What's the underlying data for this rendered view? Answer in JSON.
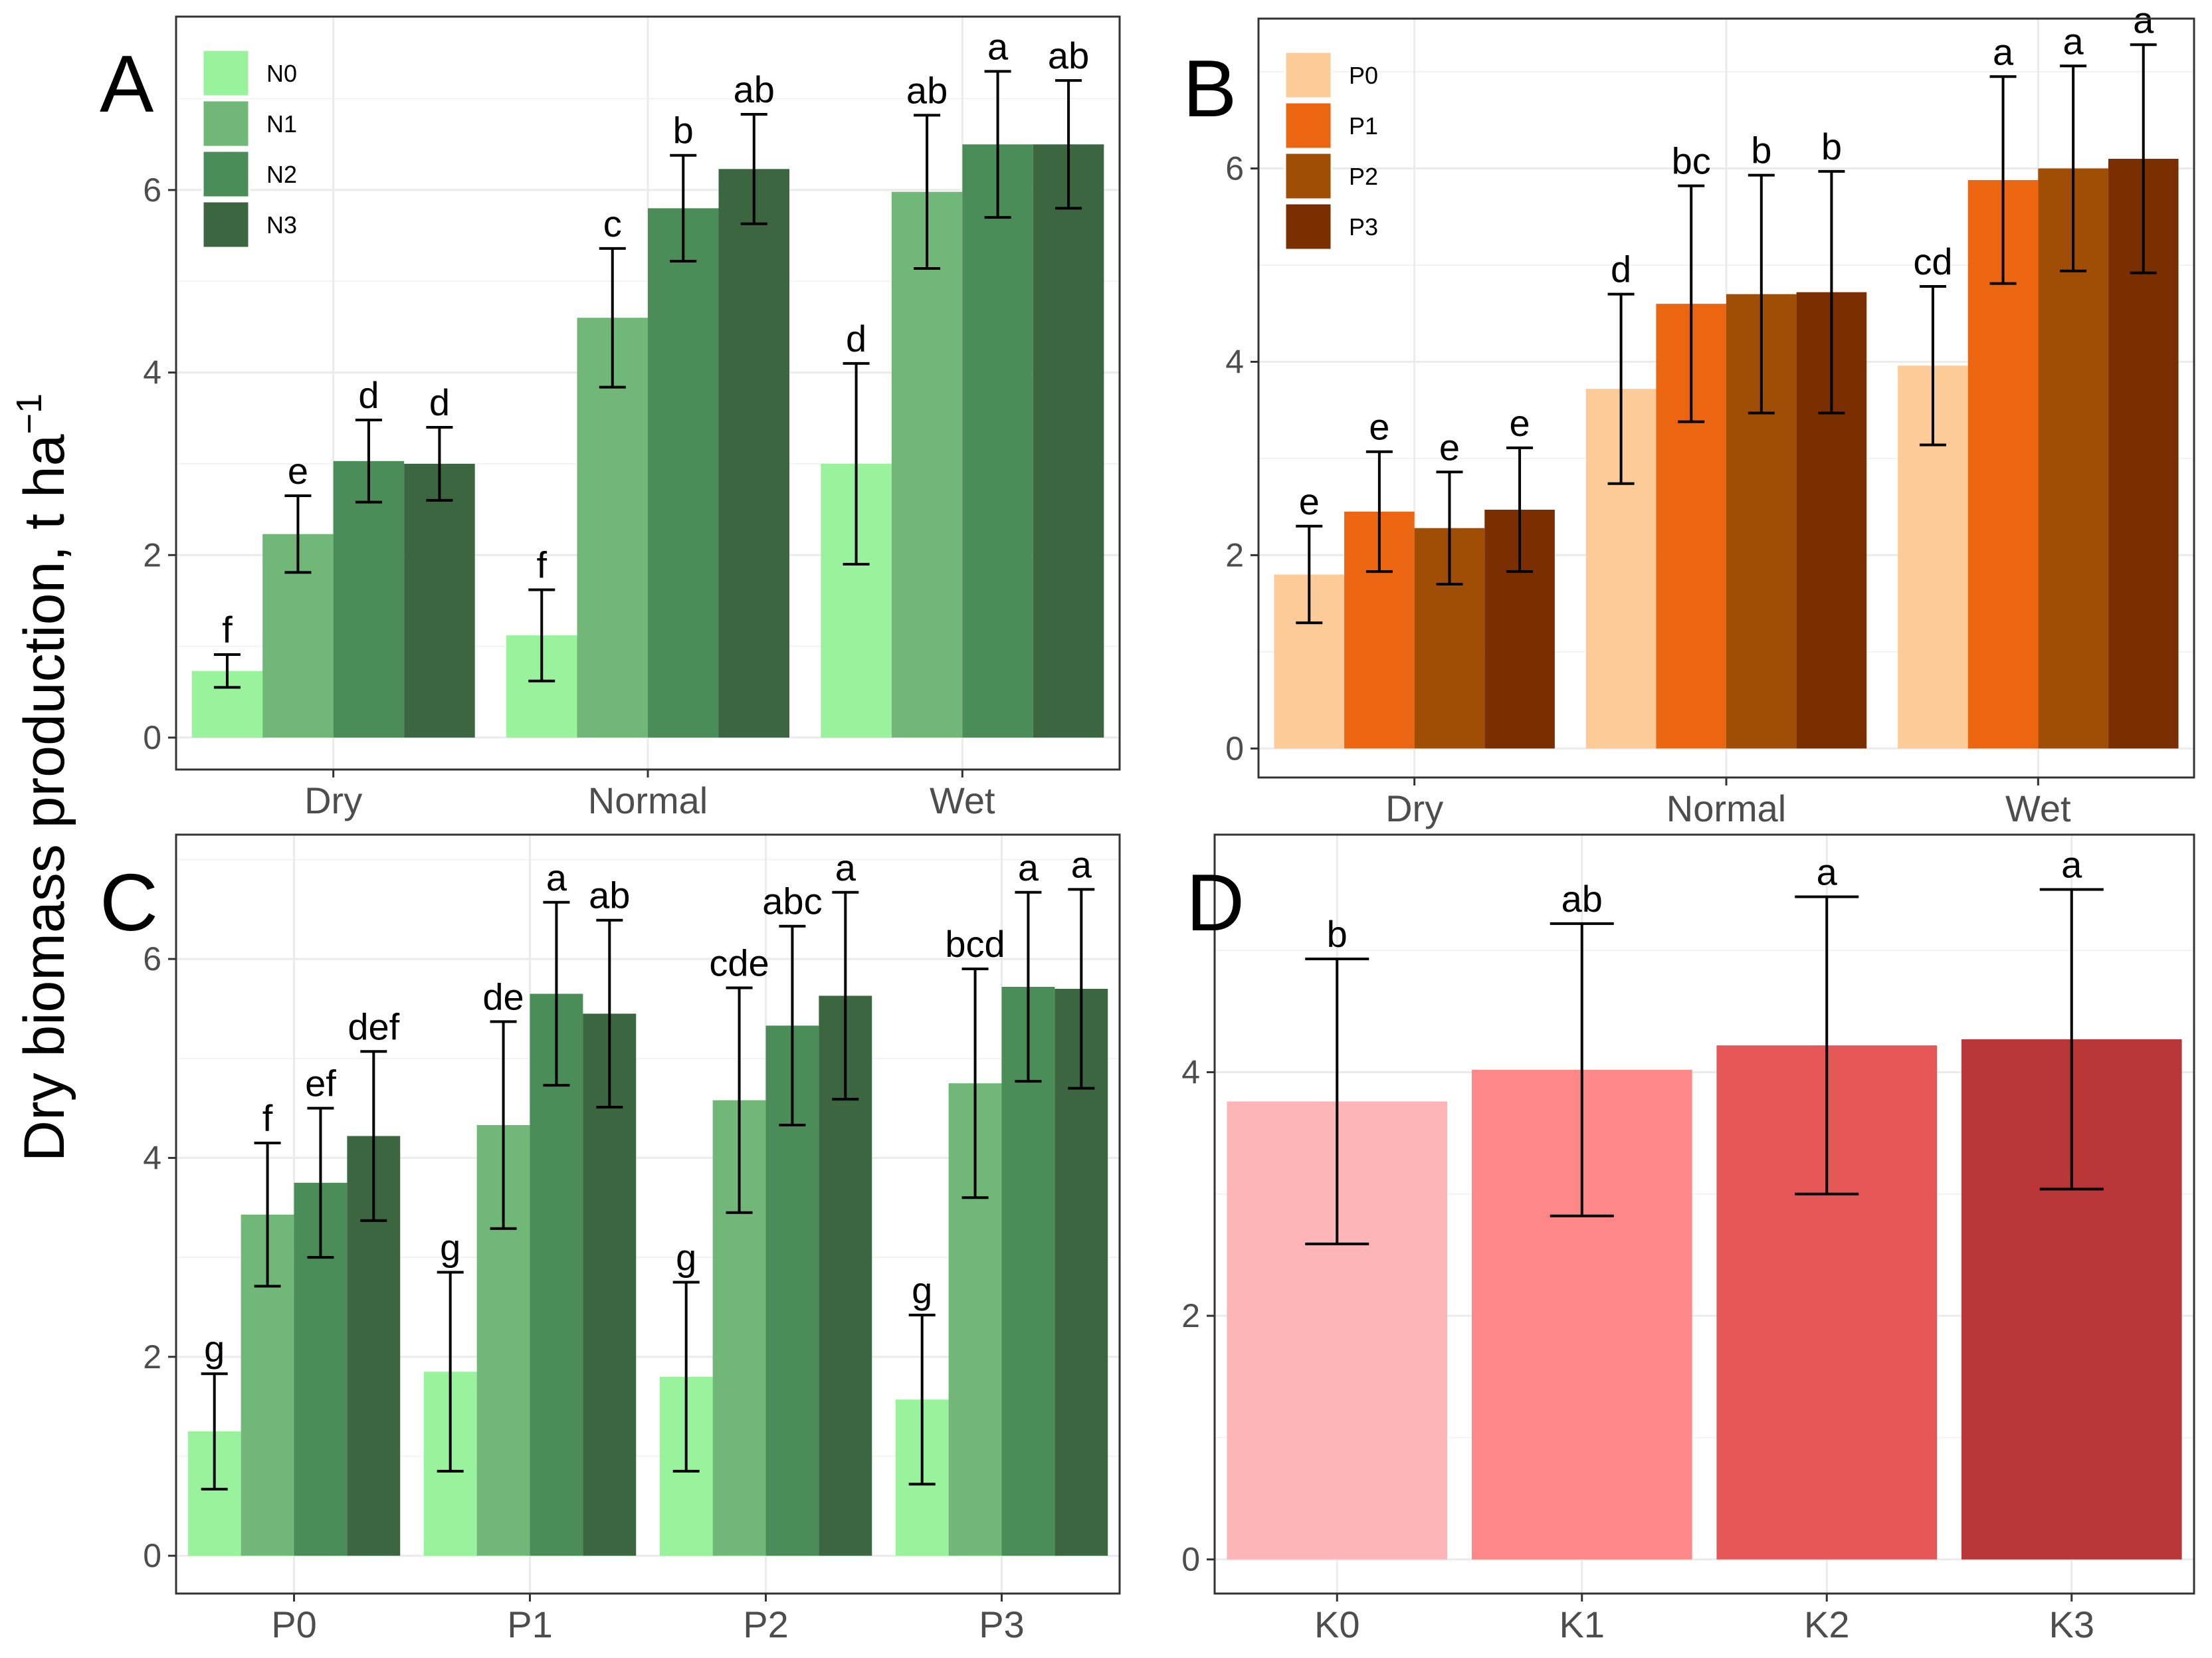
{
  "figure": {
    "y_axis_title": "Dry biomass production, t ha",
    "y_axis_title_superscript": "−1"
  },
  "chart_data": [
    {
      "panel": "A",
      "type": "bar",
      "categories": [
        "Dry",
        "Normal",
        "Wet"
      ],
      "ylim": [
        -0.35,
        7.9
      ],
      "yticks": [
        0,
        2,
        4,
        6
      ],
      "legend": true,
      "legend_position": "top-left",
      "series": [
        {
          "name": "N0",
          "color": "#98f39c",
          "values": [
            0.73,
            1.12,
            3.0
          ],
          "errors": [
            0.18,
            0.5,
            1.1
          ],
          "labels": [
            "f",
            "f",
            "d"
          ]
        },
        {
          "name": "N1",
          "color": "#70b778",
          "values": [
            2.23,
            4.6,
            5.98
          ],
          "errors": [
            0.42,
            0.76,
            0.84
          ],
          "labels": [
            "e",
            "c",
            "ab"
          ]
        },
        {
          "name": "N2",
          "color": "#4a8d58",
          "values": [
            3.03,
            5.8,
            6.5
          ],
          "errors": [
            0.45,
            0.58,
            0.8
          ],
          "labels": [
            "d",
            "b",
            "a"
          ]
        },
        {
          "name": "N3",
          "color": "#3b6640",
          "values": [
            3.0,
            6.23,
            6.5
          ],
          "errors": [
            0.4,
            0.6,
            0.7
          ],
          "labels": [
            "d",
            "ab",
            "ab"
          ]
        }
      ]
    },
    {
      "panel": "B",
      "type": "bar",
      "categories": [
        "Dry",
        "Normal",
        "Wet"
      ],
      "ylim": [
        -0.3,
        7.55
      ],
      "yticks": [
        0,
        2,
        4,
        6
      ],
      "legend": true,
      "legend_position": "top-left",
      "series": [
        {
          "name": "P0",
          "color": "#fdcb97",
          "values": [
            1.8,
            3.72,
            3.96
          ],
          "errors": [
            0.5,
            0.98,
            0.82
          ],
          "labels": [
            "e",
            "d",
            "cd"
          ]
        },
        {
          "name": "P1",
          "color": "#ec6510",
          "values": [
            2.45,
            4.6,
            5.88
          ],
          "errors": [
            0.62,
            1.22,
            1.07
          ],
          "labels": [
            "e",
            "bc",
            "a"
          ]
        },
        {
          "name": "P2",
          "color": "#a04e06",
          "values": [
            2.28,
            4.7,
            6.0
          ],
          "errors": [
            0.58,
            1.23,
            1.06
          ],
          "labels": [
            "e",
            "b",
            "a"
          ]
        },
        {
          "name": "P3",
          "color": "#7b2f00",
          "values": [
            2.47,
            4.72,
            6.1
          ],
          "errors": [
            0.64,
            1.25,
            1.18
          ],
          "labels": [
            "e",
            "b",
            "a"
          ]
        }
      ]
    },
    {
      "panel": "C",
      "type": "bar",
      "categories": [
        "P0",
        "P1",
        "P2",
        "P3"
      ],
      "ylim": [
        -0.38,
        7.25
      ],
      "yticks": [
        0,
        2,
        4,
        6
      ],
      "legend": false,
      "series": [
        {
          "name": "N0",
          "color": "#98f39c",
          "values": [
            1.25,
            1.85,
            1.8,
            1.57
          ],
          "errors": [
            0.58,
            1.0,
            0.95,
            0.85
          ],
          "labels": [
            "g",
            "g",
            "g",
            "g"
          ]
        },
        {
          "name": "N1",
          "color": "#70b778",
          "values": [
            3.43,
            4.33,
            4.58,
            4.75
          ],
          "errors": [
            0.72,
            1.04,
            1.13,
            1.15
          ],
          "labels": [
            "f",
            "de",
            "cde",
            "bcd"
          ]
        },
        {
          "name": "N2",
          "color": "#4a8d58",
          "values": [
            3.75,
            5.65,
            5.33,
            5.72
          ],
          "errors": [
            0.75,
            0.92,
            1.0,
            0.95
          ],
          "labels": [
            "ef",
            "a",
            "abc",
            "a"
          ]
        },
        {
          "name": "N3",
          "color": "#3b6640",
          "values": [
            4.22,
            5.45,
            5.63,
            5.7
          ],
          "errors": [
            0.85,
            0.94,
            1.04,
            1.0
          ],
          "labels": [
            "def",
            "ab",
            "a",
            "a"
          ]
        }
      ]
    },
    {
      "panel": "D",
      "type": "bar",
      "categories": [
        "K0",
        "K1",
        "K2",
        "K3"
      ],
      "ylim": [
        -0.28,
        5.95
      ],
      "yticks": [
        0,
        2,
        4
      ],
      "legend": false,
      "series": [
        {
          "name": "K",
          "colors": [
            "#feb5b8",
            "#fe8788",
            "#e65858",
            "#b83538"
          ],
          "values": [
            3.76,
            4.02,
            4.22,
            4.27
          ],
          "errors": [
            1.17,
            1.2,
            1.22,
            1.23
          ],
          "labels": [
            "b",
            "ab",
            "a",
            "a"
          ]
        }
      ]
    }
  ]
}
